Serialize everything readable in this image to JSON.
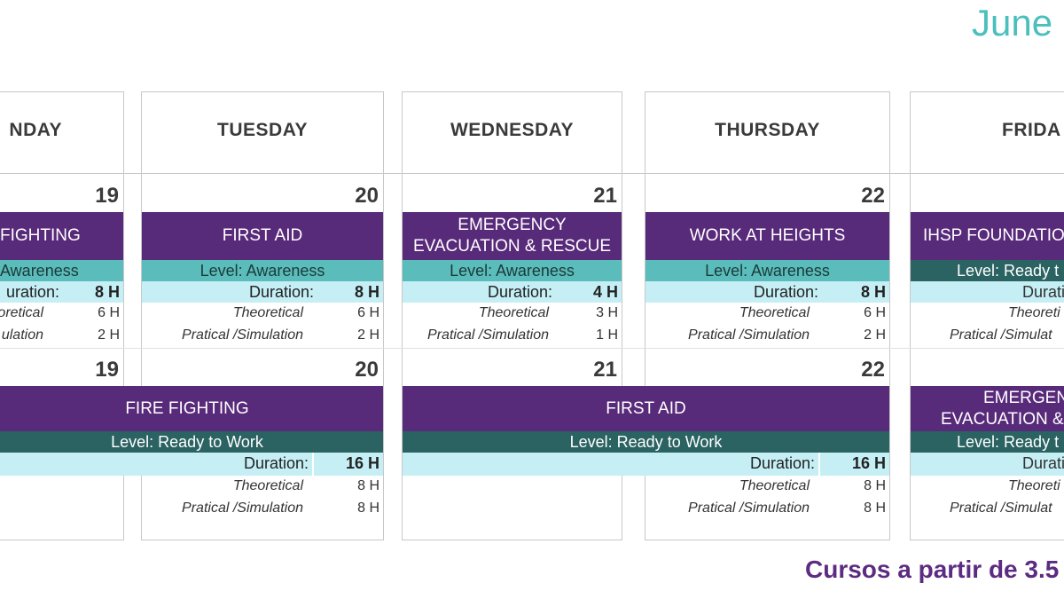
{
  "month": "June",
  "footer": "Cursos a partir de 3.5",
  "days": {
    "mon": "NDAY",
    "tue": "TUESDAY",
    "wed": "WEDNESDAY",
    "thu": "THURSDAY",
    "fri": "FRIDA"
  },
  "dates": {
    "mon1": "19",
    "tue1": "20",
    "wed1": "21",
    "thu1": "22",
    "mon2": "19",
    "tue2": "20",
    "wed2": "21",
    "thu2": "22"
  },
  "week1": {
    "mon": {
      "title": "FIGHTING",
      "level": "Awareness",
      "duration_label": "uration:",
      "duration": "8 H",
      "theo_label": "oretical",
      "theo": "6 H",
      "prac_label": "ulation",
      "prac": "2 H"
    },
    "tue": {
      "title": "FIRST AID",
      "level": "Level: Awareness",
      "duration_label": "Duration:",
      "duration": "8 H",
      "theo_label": "Theoretical",
      "theo": "6 H",
      "prac_label": "Pratical /Simulation",
      "prac": "2 H"
    },
    "wed": {
      "title_line1": "EMERGENCY",
      "title_line2": "EVACUATION & RESCUE",
      "level": "Level: Awareness",
      "duration_label": "Duration:",
      "duration": "4 H",
      "theo_label": "Theoretical",
      "theo": "3 H",
      "prac_label": "Pratical /Simulation",
      "prac": "1 H"
    },
    "thu": {
      "title": "WORK AT HEIGHTS",
      "level": "Level: Awareness",
      "duration_label": "Duration:",
      "duration": "8 H",
      "theo_label": "Theoretical",
      "theo": "6 H",
      "prac_label": "Pratical /Simulation",
      "prac": "2 H"
    },
    "fri": {
      "title": "IHSP FOUNDATIO",
      "level": "Level: Ready t",
      "duration_label": "Durati",
      "theo_label": "Theoreti",
      "prac_label": "Pratical /Simulat"
    }
  },
  "week2": {
    "fire": {
      "title": "FIRE FIGHTING",
      "level": "Level: Ready to Work",
      "duration_label": "Duration:",
      "duration": "16 H",
      "theo_label": "Theoretical",
      "theo": "8 H",
      "prac_label": "Pratical /Simulation",
      "prac": "8 H"
    },
    "aid": {
      "title": "FIRST AID",
      "level": "Level: Ready to Work",
      "duration_label": "Duration:",
      "duration": "16 H",
      "theo_label": "Theoretical",
      "theo": "8 H",
      "prac_label": "Pratical /Simulation",
      "prac": "8 H"
    },
    "fri": {
      "title_line1": "EMERGEN",
      "title_line2": "EVACUATION &",
      "level": "Level: Ready t",
      "duration_label": "Durati",
      "theo_label": "Theoreti",
      "prac_label": "Pratical /Simulat"
    }
  }
}
